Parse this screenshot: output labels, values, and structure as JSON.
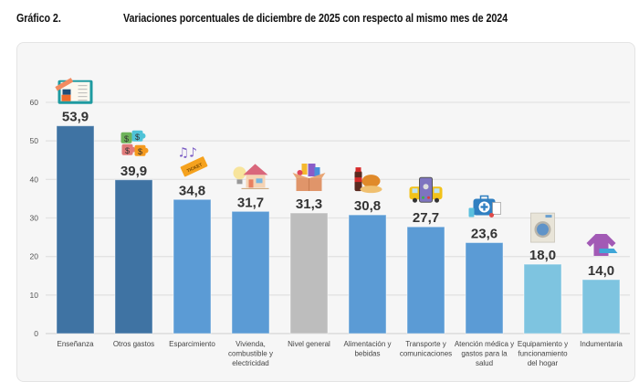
{
  "header": {
    "figure_number": "Gráfico 2.",
    "title": "Variaciones porcentuales de diciembre de 2025 con respecto al mismo mes de 2024"
  },
  "colors": {
    "dark_blue": "#3f73a3",
    "mid_blue": "#5b9bd5",
    "gray": "#bdbdbd",
    "light_blue": "#7ec4e0"
  },
  "chart_data": {
    "type": "bar",
    "title": "Variaciones porcentuales de diciembre de 2025 con respecto al mismo mes de 2024",
    "xlabel": "",
    "ylabel": "",
    "ylim": [
      0,
      60
    ],
    "yticks": [
      0,
      10,
      20,
      30,
      40,
      50,
      60
    ],
    "grid": true,
    "legend": "none",
    "categories": [
      [
        "Enseñanza"
      ],
      [
        "Otros gastos"
      ],
      [
        "Esparcimiento"
      ],
      [
        "Vivienda,",
        "combustible y",
        "electricidad"
      ],
      [
        "Nivel general"
      ],
      [
        "Alimentación y",
        "bebidas"
      ],
      [
        "Transporte y",
        "comunicaciones"
      ],
      [
        "Atención médica y",
        "gastos para la",
        "salud"
      ],
      [
        "Equipamiento y",
        "funcionamiento",
        "del hogar"
      ],
      [
        "Indumentaria"
      ]
    ],
    "values": [
      53.9,
      39.9,
      34.8,
      31.7,
      31.3,
      30.8,
      27.7,
      23.6,
      18.0,
      14.0
    ],
    "value_labels": [
      "53,9",
      "39,9",
      "34,8",
      "31,7",
      "31,3",
      "30,8",
      "27,7",
      "23,6",
      "18,0",
      "14,0"
    ],
    "bar_color_keys": [
      "dark_blue",
      "dark_blue",
      "mid_blue",
      "mid_blue",
      "gray",
      "mid_blue",
      "mid_blue",
      "mid_blue",
      "light_blue",
      "light_blue"
    ],
    "icons": [
      "book-pencil-icon",
      "puzzle-money-icon",
      "music-ticket-icon",
      "house-lightbulb-icon",
      "grocery-box-icon",
      "food-drink-icon",
      "bus-phone-icon",
      "medical-kit-icon",
      "washing-machine-icon",
      "clothing-shoe-icon"
    ]
  }
}
